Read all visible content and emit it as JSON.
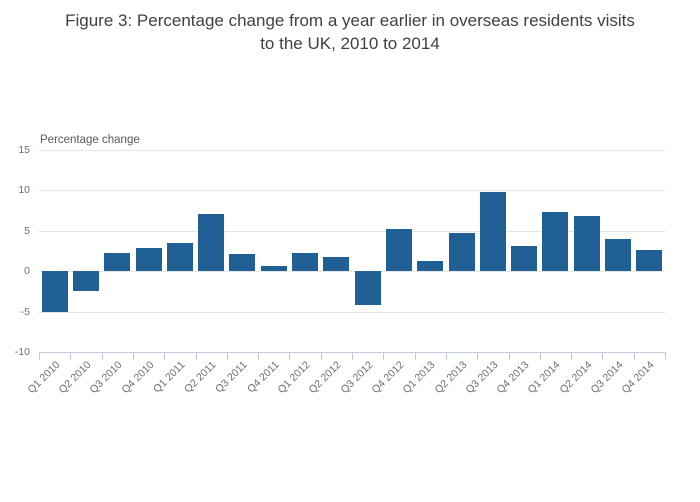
{
  "figure": {
    "title_lines": [
      "Figure 3: Percentage change from a year earlier in overseas residents visits",
      "to the UK, 2010 to 2014"
    ]
  },
  "chart_data": {
    "type": "bar",
    "title": "Figure 3: Percentage change from a year earlier in overseas residents visits to the UK, 2010 to 2014",
    "ylabel": "Percentage change",
    "xlabel": "",
    "categories": [
      "Q1 2010",
      "Q2 2010",
      "Q3 2010",
      "Q4 2010",
      "Q1 2011",
      "Q2 2011",
      "Q3 2011",
      "Q4 2011",
      "Q1 2012",
      "Q2 2012",
      "Q3 2012",
      "Q4 2012",
      "Q1 2013",
      "Q2 2013",
      "Q3 2013",
      "Q4 2013",
      "Q1 2014",
      "Q2 2014",
      "Q3 2014",
      "Q4 2014"
    ],
    "values": [
      -5.1,
      -2.5,
      2.2,
      2.9,
      3.4,
      7.0,
      2.1,
      0.6,
      2.2,
      1.7,
      -4.2,
      5.2,
      1.2,
      4.7,
      9.7,
      3.1,
      7.3,
      6.8,
      3.9,
      2.6
    ],
    "ylim": [
      -10,
      15
    ],
    "yticks": [
      15,
      10,
      5,
      0,
      -5,
      -10
    ],
    "grid": true,
    "legend": "none",
    "colors": {
      "bar": "#206095",
      "gridline": "#e6e6e6",
      "axis": "#c2cbe2",
      "tick_label": "#6e6e6e",
      "axis_title": "#58595b",
      "title": "#414042",
      "background": "#ffffff"
    }
  }
}
